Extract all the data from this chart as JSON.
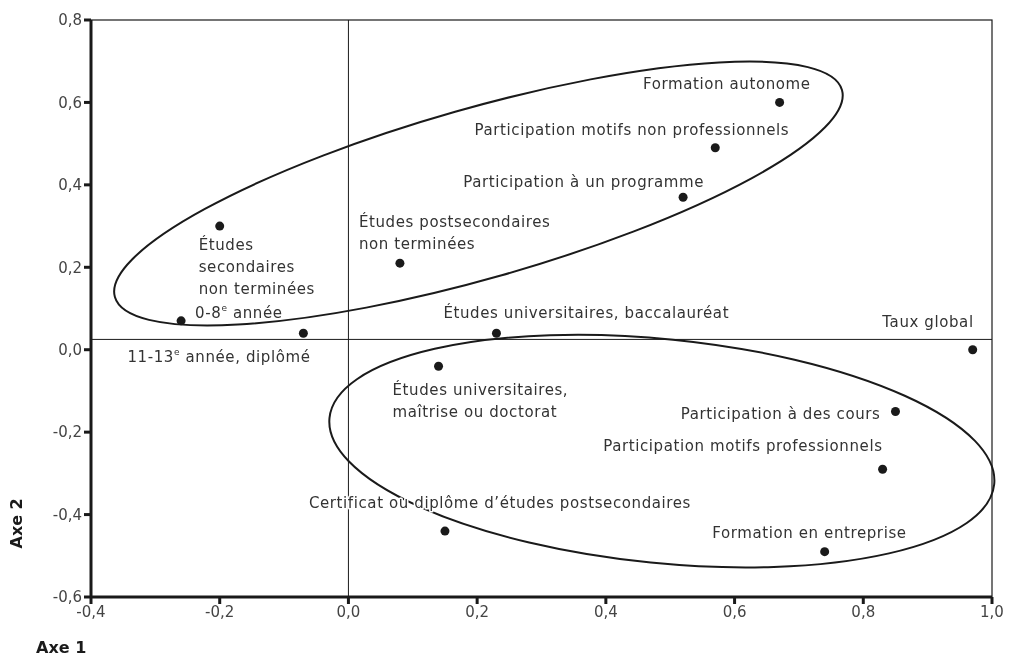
{
  "chart_data": {
    "type": "scatter",
    "xlabel": "Axe 1",
    "ylabel": "Axe 2",
    "x": [
      0.67,
      0.57,
      0.52,
      -0.2,
      0.08,
      -0.26,
      -0.07,
      0.23,
      0.97,
      0.14,
      0.85,
      0.83,
      0.15,
      0.74
    ],
    "values": [
      0.6,
      0.49,
      0.37,
      0.3,
      0.21,
      0.07,
      0.04,
      0.04,
      0.0,
      -0.04,
      -0.15,
      -0.29,
      -0.44,
      -0.49
    ],
    "color": "#1a1a1a",
    "marker": "circle",
    "xlim": [
      -0.4,
      1.0
    ],
    "ylim": [
      -0.6,
      0.8
    ],
    "xticks": [
      {
        "value": -0.4,
        "label": "-0,4"
      },
      {
        "value": -0.2,
        "label": "-0,2"
      },
      {
        "value": 0,
        "label": "0,0"
      },
      {
        "value": 0.2,
        "label": "0,2"
      },
      {
        "value": 0.4,
        "label": "0,4"
      },
      {
        "value": 0.6,
        "label": "0,6"
      },
      {
        "value": 0.8,
        "label": "0,8"
      },
      {
        "value": 1.0,
        "label": "1,0"
      }
    ],
    "yticks": [
      {
        "value": -0.6,
        "label": "-0,6"
      },
      {
        "value": -0.4,
        "label": "-0,4"
      },
      {
        "value": -0.2,
        "label": "-0,2"
      },
      {
        "value": 0,
        "label": "0,0"
      },
      {
        "value": 0.2,
        "label": "0,2"
      },
      {
        "value": 0.4,
        "label": "0,4"
      },
      {
        "value": 0.6,
        "label": "0,6"
      },
      {
        "value": 0.8,
        "label": "0,8"
      }
    ],
    "ref_lines": [
      {
        "axis": "x",
        "value": 0,
        "color": "#1a1a1a"
      },
      {
        "axis": "y",
        "value": 0.025,
        "color": "#1a1a1a"
      }
    ],
    "annotations": [
      {
        "text": "Formation autonome",
        "x": 0.67,
        "y": 0.6
      },
      {
        "text": "Participation motifs non professionnels",
        "x": 0.57,
        "y": 0.49
      },
      {
        "text": "Participation à un programme",
        "x": 0.52,
        "y": 0.37
      },
      {
        "text": "Études\nsecondaires\nnon terminées",
        "x": -0.2,
        "y": 0.3
      },
      {
        "text": "Études postsecondaires\nnon terminées",
        "x": 0.08,
        "y": 0.21
      },
      {
        "text": "0-8$^{e}$ année",
        "x": -0.26,
        "y": 0.07
      },
      {
        "text": "11-13$^{e}$ année, diplômé",
        "x": -0.07,
        "y": 0.04
      },
      {
        "text": "Études universitaires, baccalauréat",
        "x": 0.23,
        "y": 0.04
      },
      {
        "text": "Taux global",
        "x": 0.97,
        "y": 0.0
      },
      {
        "text": "Études universitaires,\nmaîtrise ou doctorat",
        "x": 0.14,
        "y": -0.04
      },
      {
        "text": "Participation à des cours",
        "x": 0.85,
        "y": -0.15
      },
      {
        "text": "Participation motifs professionnels",
        "x": 0.83,
        "y": -0.29
      },
      {
        "text": "Certificat ou diplôme d’études postsecondaires",
        "x": 0.15,
        "y": -0.44
      },
      {
        "text": "Formation en entreprise",
        "x": 0.74,
        "y": -0.49
      }
    ]
  }
}
